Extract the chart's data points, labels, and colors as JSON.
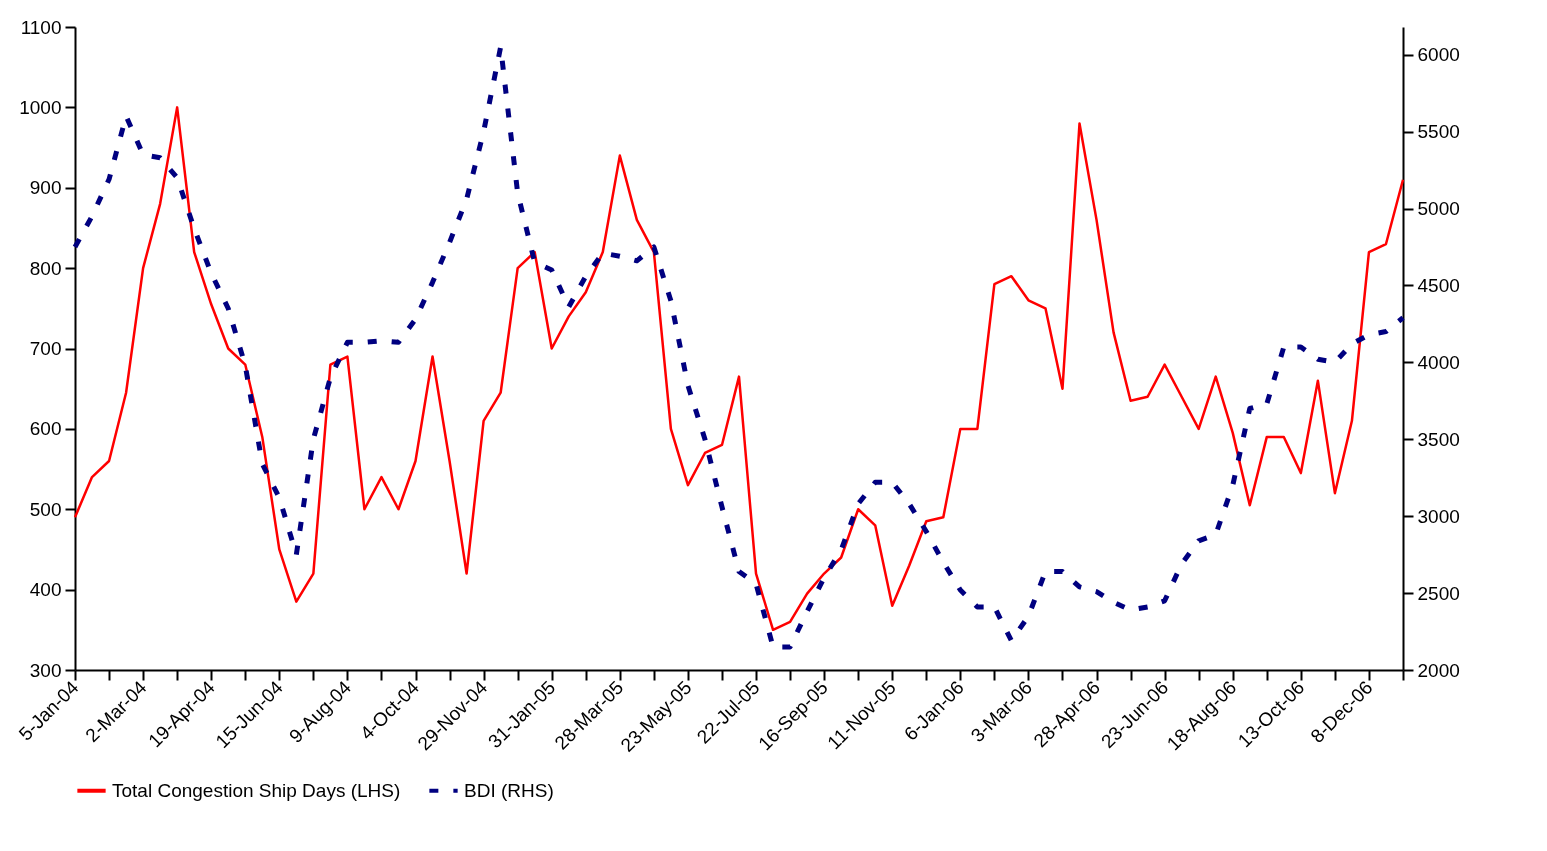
{
  "chart_data": {
    "type": "line",
    "categories": [
      "5-Jan-04",
      null,
      null,
      null,
      "2-Mar-04",
      null,
      null,
      null,
      "19-Apr-04",
      null,
      null,
      null,
      "15-Jun-04",
      null,
      null,
      null,
      "9-Aug-04",
      null,
      null,
      null,
      "4-Oct-04",
      null,
      null,
      null,
      "29-Nov-04",
      null,
      null,
      null,
      "31-Jan-05",
      null,
      null,
      null,
      "28-Mar-05",
      null,
      null,
      null,
      "23-May-05",
      null,
      null,
      null,
      "22-Jul-05",
      null,
      null,
      null,
      "16-Sep-05",
      null,
      null,
      null,
      "11-Nov-05",
      null,
      null,
      null,
      "6-Jan-06",
      null,
      null,
      null,
      "3-Mar-06",
      null,
      null,
      null,
      "28-Apr-06",
      null,
      null,
      null,
      "23-Jun-06",
      null,
      null,
      null,
      "18-Aug-06",
      null,
      null,
      null,
      "13-Oct-06",
      null,
      null,
      null,
      "8-Dec-06",
      null,
      null
    ],
    "series": [
      {
        "name": "Total Congestion Ship Days (LHS)",
        "color": "#ff0000",
        "line_style": "solid",
        "values": [
          490,
          540,
          560,
          645,
          800,
          880,
          1000,
          820,
          755,
          700,
          680,
          590,
          450,
          385,
          420,
          680,
          690,
          500,
          540,
          500,
          560,
          690,
          560,
          420,
          610,
          645,
          800,
          820,
          700,
          740,
          770,
          820,
          940,
          860,
          820,
          600,
          530,
          570,
          580,
          665,
          420,
          350,
          360,
          395,
          420,
          440,
          500,
          480,
          380,
          430,
          485,
          490,
          600,
          600,
          780,
          790,
          760,
          750,
          650,
          980,
          860,
          720,
          635,
          640,
          680,
          640,
          600,
          665,
          595,
          505,
          590,
          590,
          545,
          660,
          520,
          610,
          820,
          830,
          910
        ]
      },
      {
        "name": "BDI (RHS)",
        "color": "#000080",
        "axis": "y2",
        "line_style": "dashed",
        "values": [
          4750,
          4950,
          5190,
          5600,
          5350,
          5330,
          5200,
          4870,
          4580,
          4350,
          3980,
          3340,
          3120,
          2750,
          3500,
          3900,
          4130,
          4130,
          4140,
          4130,
          4280,
          4520,
          4780,
          5060,
          5500,
          6050,
          5100,
          4650,
          4600,
          4360,
          4560,
          4710,
          4690,
          4660,
          4750,
          4400,
          3850,
          3500,
          3060,
          2640,
          2560,
          2150,
          2150,
          2380,
          2600,
          2780,
          3080,
          3220,
          3220,
          3080,
          2900,
          2700,
          2520,
          2410,
          2410,
          2190,
          2350,
          2640,
          2640,
          2540,
          2510,
          2440,
          2390,
          2410,
          2450,
          2690,
          2840,
          2880,
          3200,
          3700,
          3730,
          4100,
          4100,
          4020,
          4000,
          4120,
          4180,
          4200,
          4290
        ]
      }
    ],
    "ylim": [
      300,
      1100
    ],
    "yticks": [
      300,
      400,
      500,
      600,
      700,
      800,
      900,
      1000,
      1100
    ],
    "y2lim": [
      2000,
      6180
    ],
    "y2ticks": [
      2000,
      2500,
      3000,
      3500,
      4000,
      4500,
      5000,
      5500,
      6000
    ],
    "grid": false,
    "legend": "bottom"
  }
}
